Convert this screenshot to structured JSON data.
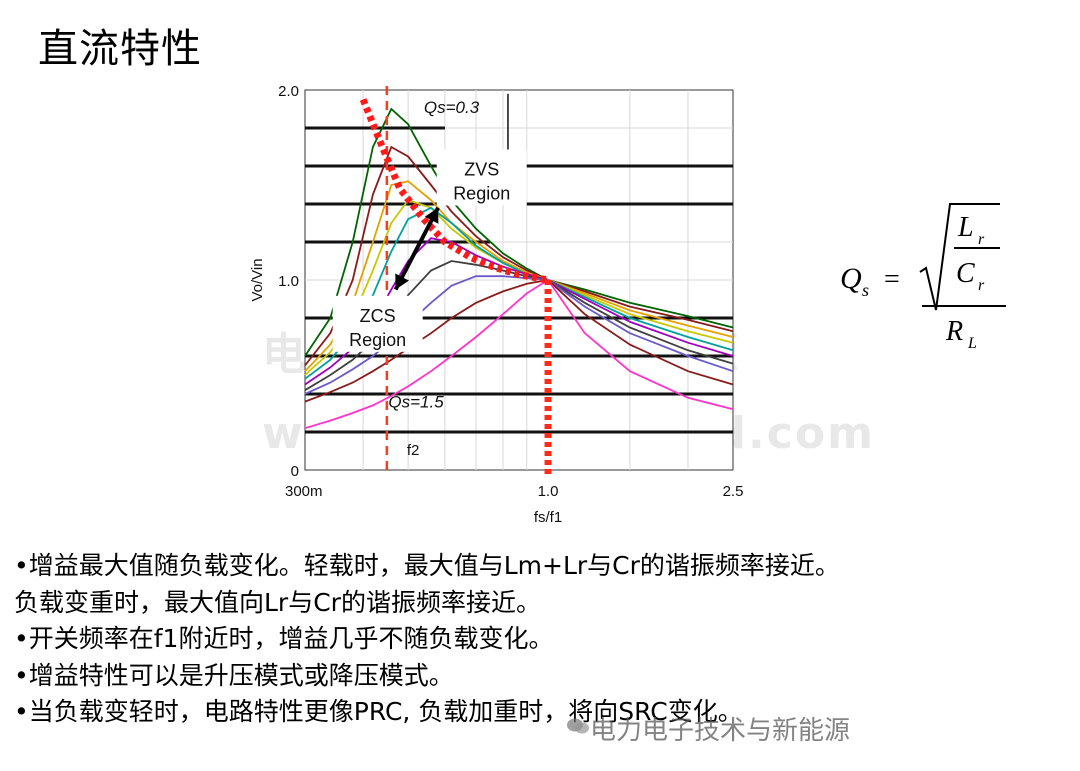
{
  "slide": {
    "title": "直流特性",
    "bullets": [
      "•增益最大值随负载变化。轻载时，最大值与Lm+Lr与Cr的谐振频率接近。",
      "负载变重时，最大值向Lr与Cr的谐振频率接近。",
      "•开关频率在f1附近时，增益几乎不随负载变化。",
      "•增益特性可以是升压模式或降压模式。",
      "•当负载变轻时，电路特性更像PRC, 负载加重时，将向SRC变化。"
    ],
    "watermarks": [
      "电力电子技术与新能源",
      "www.21micro-grid.com",
      "电力电子技术与新能源"
    ]
  },
  "formula": {
    "lhs": "Q",
    "lhs_sub": "s",
    "equals": "=",
    "numerator_top": "L",
    "numerator_top_sub": "r",
    "numerator_bottom": "C",
    "numerator_bottom_sub": "r",
    "denominator": "R",
    "denominator_sub": "L"
  },
  "chart_data": {
    "type": "line",
    "xlabel": "fs/f1",
    "ylabel": "Vo/Vin",
    "x_scale": "log",
    "xlim": [
      0.3,
      2.5
    ],
    "ylim": [
      0,
      2.0
    ],
    "x_ticks": [
      "300m",
      "1.0",
      "2.5"
    ],
    "y_ticks": [
      "0",
      "1.0",
      "2.0"
    ],
    "vertical_markers": [
      {
        "label": "f2",
        "x": 0.45,
        "style": "dashed",
        "color": "#ff3b1a"
      },
      {
        "label": "",
        "x": 1.0,
        "style": "dotted",
        "color": "#ff2a1a"
      }
    ],
    "annotations": [
      {
        "text": "Qs=0.3",
        "x": 0.62,
        "y": 1.88
      },
      {
        "text": "Qs=1.5",
        "x": 0.52,
        "y": 0.33
      },
      {
        "text": "ZVS\nRegion",
        "x": 0.72,
        "y": 1.55
      },
      {
        "text": "ZCS\nRegion",
        "x": 0.43,
        "y": 0.78
      }
    ],
    "peak_boundary": {
      "x": [
        0.4,
        0.44,
        0.48,
        0.54,
        0.6,
        0.68,
        0.76,
        0.86,
        1.0
      ],
      "y": [
        1.95,
        1.7,
        1.48,
        1.32,
        1.2,
        1.12,
        1.07,
        1.03,
        1.0
      ]
    },
    "series": [
      {
        "color": "#006400",
        "x": [
          0.3,
          0.34,
          0.38,
          0.42,
          0.46,
          0.5,
          0.56,
          0.62,
          0.7,
          0.8,
          0.9,
          1.0,
          1.2,
          1.5,
          2.0,
          2.5
        ],
        "y": [
          0.6,
          0.8,
          1.2,
          1.7,
          1.9,
          1.82,
          1.6,
          1.42,
          1.27,
          1.14,
          1.06,
          1.0,
          0.95,
          0.88,
          0.81,
          0.75
        ]
      },
      {
        "color": "#8b1a1a",
        "x": [
          0.3,
          0.34,
          0.38,
          0.42,
          0.46,
          0.5,
          0.56,
          0.62,
          0.7,
          0.8,
          0.9,
          1.0,
          1.2,
          1.5,
          2.0,
          2.5
        ],
        "y": [
          0.55,
          0.72,
          1.0,
          1.45,
          1.7,
          1.65,
          1.5,
          1.36,
          1.23,
          1.12,
          1.05,
          1.0,
          0.94,
          0.86,
          0.79,
          0.73
        ]
      },
      {
        "color": "#e6a000",
        "x": [
          0.3,
          0.34,
          0.38,
          0.42,
          0.46,
          0.5,
          0.56,
          0.62,
          0.7,
          0.8,
          0.9,
          1.0,
          1.2,
          1.5,
          2.0,
          2.5
        ],
        "y": [
          0.52,
          0.66,
          0.88,
          1.2,
          1.5,
          1.52,
          1.42,
          1.3,
          1.2,
          1.1,
          1.04,
          1.0,
          0.93,
          0.84,
          0.76,
          0.7
        ]
      },
      {
        "color": "#c8c800",
        "x": [
          0.3,
          0.34,
          0.38,
          0.42,
          0.46,
          0.5,
          0.56,
          0.62,
          0.7,
          0.8,
          0.9,
          1.0,
          1.2,
          1.5,
          2.0,
          2.5
        ],
        "y": [
          0.5,
          0.62,
          0.8,
          1.05,
          1.3,
          1.42,
          1.38,
          1.27,
          1.17,
          1.09,
          1.03,
          1.0,
          0.92,
          0.82,
          0.73,
          0.67
        ]
      },
      {
        "color": "#00a0a0",
        "x": [
          0.3,
          0.34,
          0.38,
          0.42,
          0.46,
          0.5,
          0.56,
          0.62,
          0.7,
          0.8,
          0.9,
          1.0,
          1.2,
          1.5,
          2.0,
          2.5
        ],
        "y": [
          0.48,
          0.58,
          0.72,
          0.92,
          1.15,
          1.32,
          1.38,
          1.3,
          1.18,
          1.09,
          1.03,
          1.0,
          0.91,
          0.8,
          0.7,
          0.63
        ]
      },
      {
        "color": "#a000c0",
        "x": [
          0.3,
          0.34,
          0.38,
          0.42,
          0.46,
          0.5,
          0.56,
          0.62,
          0.7,
          0.8,
          0.9,
          1.0,
          1.2,
          1.5,
          2.0,
          2.5
        ],
        "y": [
          0.45,
          0.54,
          0.64,
          0.78,
          0.95,
          1.1,
          1.22,
          1.2,
          1.13,
          1.07,
          1.03,
          1.0,
          0.9,
          0.78,
          0.67,
          0.6
        ]
      },
      {
        "color": "#404040",
        "x": [
          0.3,
          0.34,
          0.38,
          0.42,
          0.46,
          0.5,
          0.56,
          0.62,
          0.7,
          0.8,
          0.9,
          1.0,
          1.2,
          1.5,
          2.0,
          2.5
        ],
        "y": [
          0.42,
          0.5,
          0.58,
          0.68,
          0.8,
          0.92,
          1.05,
          1.1,
          1.08,
          1.05,
          1.02,
          1.0,
          0.88,
          0.75,
          0.63,
          0.56
        ]
      },
      {
        "color": "#6a5acd",
        "x": [
          0.3,
          0.34,
          0.38,
          0.42,
          0.46,
          0.5,
          0.56,
          0.62,
          0.7,
          0.8,
          0.9,
          1.0,
          1.2,
          1.5,
          2.0,
          2.5
        ],
        "y": [
          0.4,
          0.46,
          0.53,
          0.6,
          0.68,
          0.77,
          0.88,
          0.97,
          1.02,
          1.02,
          1.01,
          1.0,
          0.86,
          0.72,
          0.6,
          0.52
        ]
      },
      {
        "color": "#8b1a1a",
        "x": [
          0.3,
          0.34,
          0.38,
          0.42,
          0.46,
          0.5,
          0.56,
          0.62,
          0.7,
          0.8,
          0.9,
          1.0,
          1.2,
          1.5,
          2.0,
          2.5
        ],
        "y": [
          0.36,
          0.41,
          0.46,
          0.52,
          0.58,
          0.64,
          0.72,
          0.8,
          0.88,
          0.94,
          0.98,
          1.0,
          0.82,
          0.66,
          0.52,
          0.45
        ]
      },
      {
        "color": "#ff33cc",
        "x": [
          0.3,
          0.34,
          0.38,
          0.42,
          0.46,
          0.5,
          0.56,
          0.62,
          0.7,
          0.8,
          0.9,
          1.0,
          1.2,
          1.5,
          2.0,
          2.5
        ],
        "y": [
          0.22,
          0.26,
          0.3,
          0.34,
          0.39,
          0.44,
          0.52,
          0.6,
          0.7,
          0.82,
          0.93,
          1.0,
          0.72,
          0.52,
          0.38,
          0.32
        ]
      }
    ]
  }
}
